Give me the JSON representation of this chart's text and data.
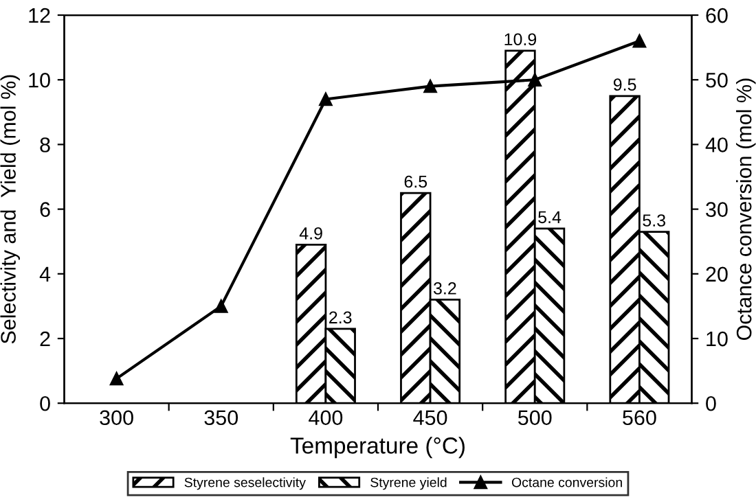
{
  "chart_data": {
    "type": "bar",
    "xlabel": "Temperature (°C)",
    "ylabel": "Selectivity and  Yield (mol %)",
    "y2label": "Octance conversion (mol %)",
    "categories": [
      "300",
      "350",
      "400",
      "450",
      "500",
      "560"
    ],
    "series": [
      {
        "name": "Styrene seselectivity",
        "color": "#000000",
        "values": [
          null,
          null,
          4.9,
          6.5,
          10.9,
          9.5
        ],
        "value_labels": [
          null,
          null,
          "4.9",
          "6.5",
          "10.9",
          "9.5"
        ]
      },
      {
        "name": "Styrene yield",
        "color": "#000000",
        "values": [
          null,
          null,
          2.3,
          3.2,
          5.4,
          5.3
        ],
        "value_labels": [
          null,
          null,
          "2.3",
          "3.2",
          "5.4",
          "5.3"
        ]
      },
      {
        "name": "Octane conversion",
        "type": "line",
        "axis": "y2",
        "color": "#000000",
        "marker": "triangle",
        "values": [
          3.8,
          15,
          47,
          49,
          50,
          56
        ]
      }
    ],
    "ylim": [
      0,
      12
    ],
    "yticks": [
      0,
      2,
      4,
      6,
      8,
      10,
      12
    ],
    "y2lim": [
      0,
      60
    ],
    "y2ticks": [
      0,
      10,
      20,
      30,
      40,
      50,
      60
    ],
    "grid": false,
    "legend": "bottom"
  }
}
